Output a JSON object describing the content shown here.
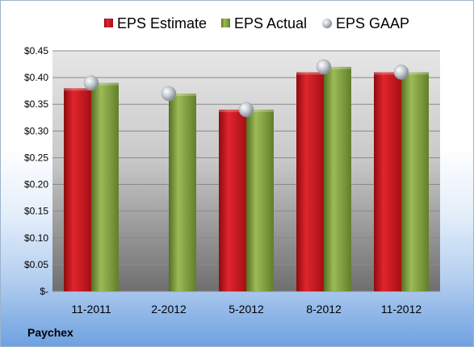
{
  "company": "Paychex",
  "chart_data": {
    "type": "bar",
    "categories": [
      "11-2011",
      "2-2012",
      "5-2012",
      "8-2012",
      "11-2012"
    ],
    "series": [
      {
        "name": "EPS Estimate",
        "kind": "bar",
        "color": "#c0141c",
        "values": [
          0.38,
          null,
          0.34,
          0.41,
          0.41
        ]
      },
      {
        "name": "EPS Actual",
        "kind": "bar",
        "color": "#7d9a3a",
        "values": [
          0.39,
          0.37,
          0.34,
          0.42,
          0.41
        ]
      },
      {
        "name": "EPS GAAP",
        "kind": "marker",
        "color": "#b8c0c8",
        "values": [
          0.39,
          0.37,
          0.34,
          0.42,
          0.41
        ]
      }
    ],
    "ylim": [
      0,
      0.45
    ],
    "yticks": [
      0,
      0.05,
      0.1,
      0.15,
      0.2,
      0.25,
      0.3,
      0.35,
      0.4,
      0.45
    ],
    "ytick_labels": [
      "$-",
      "$0.05",
      "$0.10",
      "$0.15",
      "$0.20",
      "$0.25",
      "$0.30",
      "$0.35",
      "$0.40",
      "$0.45"
    ],
    "grid": true,
    "legend_position": "top"
  }
}
